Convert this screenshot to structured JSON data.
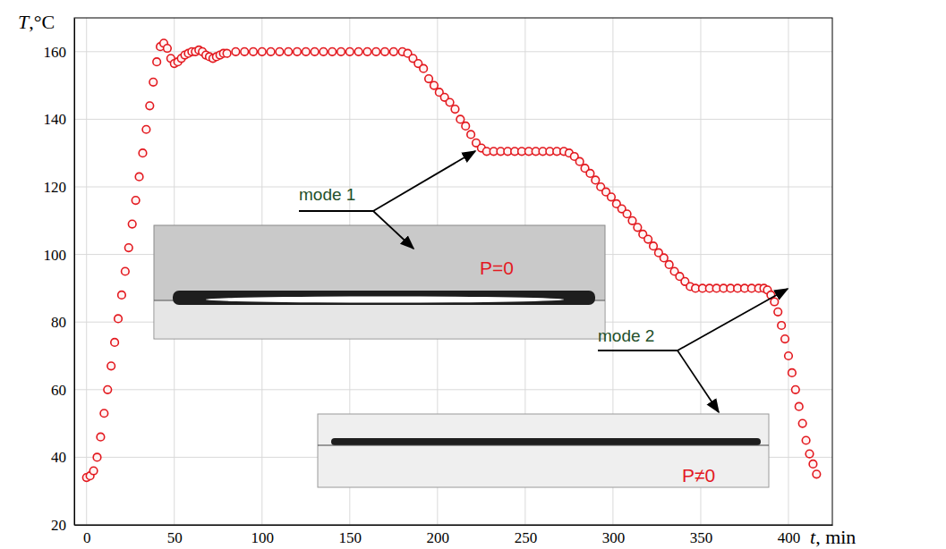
{
  "chart_data": {
    "type": "line",
    "x_label": "t, min",
    "y_label": "T,°C",
    "xlim": [
      -7,
      425
    ],
    "ylim": [
      20,
      170
    ],
    "xticks": [
      0,
      50,
      100,
      150,
      200,
      250,
      300,
      350,
      400
    ],
    "yticks": [
      20,
      40,
      60,
      80,
      100,
      120,
      140,
      160
    ],
    "grid": true,
    "annotations": [
      "mode 1",
      "mode 2",
      "P=0",
      "P≠0"
    ],
    "x": [
      0,
      2,
      4,
      6,
      8,
      10,
      12,
      14,
      16,
      18,
      20,
      22,
      24,
      26,
      28,
      30,
      32,
      34,
      36,
      38,
      40,
      42,
      44,
      46,
      48,
      50,
      52,
      54,
      56,
      58,
      60,
      62,
      64,
      66,
      68,
      70,
      72,
      74,
      76,
      78,
      80,
      85,
      90,
      95,
      100,
      105,
      110,
      115,
      120,
      125,
      130,
      135,
      140,
      145,
      150,
      155,
      160,
      165,
      170,
      175,
      180,
      183,
      186,
      189,
      192,
      195,
      198,
      201,
      204,
      207,
      210,
      213,
      216,
      219,
      222,
      225,
      228,
      232,
      236,
      240,
      244,
      248,
      252,
      256,
      260,
      264,
      268,
      272,
      275,
      278,
      281,
      284,
      287,
      290,
      293,
      296,
      299,
      302,
      305,
      308,
      311,
      314,
      317,
      320,
      323,
      326,
      329,
      332,
      335,
      338,
      341,
      344,
      347,
      351,
      355,
      359,
      363,
      367,
      371,
      375,
      379,
      383,
      386,
      388,
      390,
      392,
      394,
      396,
      398,
      400,
      402,
      404,
      406,
      408,
      410,
      412,
      414,
      416
    ],
    "series": [
      {
        "color": "#e3191f",
        "marker": "circle",
        "values": [
          34,
          34.5,
          36,
          40,
          46,
          53,
          60,
          67,
          74,
          81,
          88,
          95,
          102,
          109,
          116,
          123,
          130,
          137,
          144,
          151,
          157,
          161.5,
          162.5,
          161,
          158,
          156.5,
          157,
          158,
          159,
          159.5,
          160,
          160,
          160.5,
          160,
          159,
          158.5,
          158,
          158.5,
          159,
          159.5,
          159.5,
          160,
          160,
          160,
          160,
          160,
          160,
          160,
          160,
          160,
          160,
          160,
          160,
          160,
          160,
          160,
          160,
          160,
          160,
          160,
          160,
          159.5,
          158,
          156.5,
          155,
          152,
          150,
          148,
          146.5,
          145,
          143,
          140,
          138,
          135.5,
          133,
          131.5,
          130.5,
          130.5,
          130.5,
          130.5,
          130.5,
          130.5,
          130.5,
          130.5,
          130.5,
          130.5,
          130.5,
          130.5,
          130,
          129,
          127.5,
          125.5,
          124,
          122,
          120,
          118.5,
          117,
          115,
          113.5,
          112,
          110,
          108,
          106,
          104.5,
          102.5,
          100.5,
          99,
          97,
          95,
          93.5,
          92,
          90.5,
          90,
          90,
          90,
          90,
          90,
          90,
          90,
          90,
          90,
          90,
          90,
          89.5,
          88,
          86,
          83,
          79,
          75,
          70,
          65,
          60,
          55,
          50,
          45,
          41,
          38,
          35
        ]
      }
    ]
  }
}
